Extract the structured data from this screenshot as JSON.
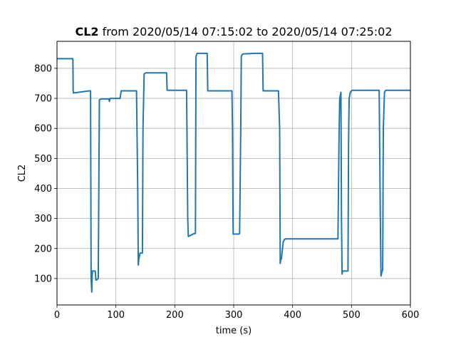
{
  "chart_data": {
    "type": "line",
    "title_bold": "CL2",
    "title_rest": " from 2020/05/14 07:15:02 to 2020/05/14 07:25:02",
    "xlabel": "time (s)",
    "ylabel": "CL2",
    "xlim": [
      0,
      600
    ],
    "ylim": [
      12,
      890
    ],
    "xticks": [
      0,
      100,
      200,
      300,
      400,
      500,
      600
    ],
    "yticks": [
      100,
      200,
      300,
      400,
      500,
      600,
      700,
      800
    ],
    "grid": true,
    "line_color": "#1f77b4",
    "series": [
      {
        "x": [
          0,
          27,
          27.5,
          28,
          55,
          57,
          58,
          59,
          60,
          65,
          66,
          67,
          70,
          72,
          73,
          75,
          88,
          89,
          90,
          107,
          109,
          135,
          137,
          138,
          139,
          141,
          145,
          146,
          148,
          151,
          186,
          187,
          220,
          222,
          223,
          233,
          235,
          236,
          238,
          255,
          256,
          297,
          298,
          299,
          309,
          310,
          312,
          313,
          315,
          335,
          349,
          350,
          351,
          376,
          378,
          379,
          380,
          381,
          384,
          386,
          388,
          390,
          476,
          477,
          479,
          480,
          482,
          483,
          484,
          485,
          487,
          494,
          495,
          496,
          498,
          500,
          502,
          505,
          522,
          524,
          545,
          547,
          549,
          550,
          552,
          553,
          554,
          556,
          558,
          600
        ],
        "y": [
          832,
          832,
          725,
          718,
          725,
          725,
          100,
          55,
          125,
          125,
          95,
          95,
          100,
          695,
          696,
          698,
          698,
          690,
          700,
          700,
          725,
          725,
          400,
          145,
          165,
          185,
          185,
          600,
          782,
          785,
          785,
          727,
          727,
          300,
          240,
          250,
          250,
          840,
          850,
          850,
          725,
          725,
          600,
          248,
          248,
          250,
          600,
          840,
          848,
          850,
          850,
          725,
          725,
          725,
          600,
          150,
          165,
          165,
          220,
          230,
          232,
          232,
          232,
          232,
          600,
          700,
          720,
          300,
          115,
          125,
          125,
          125,
          550,
          700,
          720,
          725,
          727,
          727,
          727,
          727,
          727,
          727,
          300,
          108,
          125,
          127,
          600,
          720,
          727,
          727
        ]
      }
    ]
  }
}
